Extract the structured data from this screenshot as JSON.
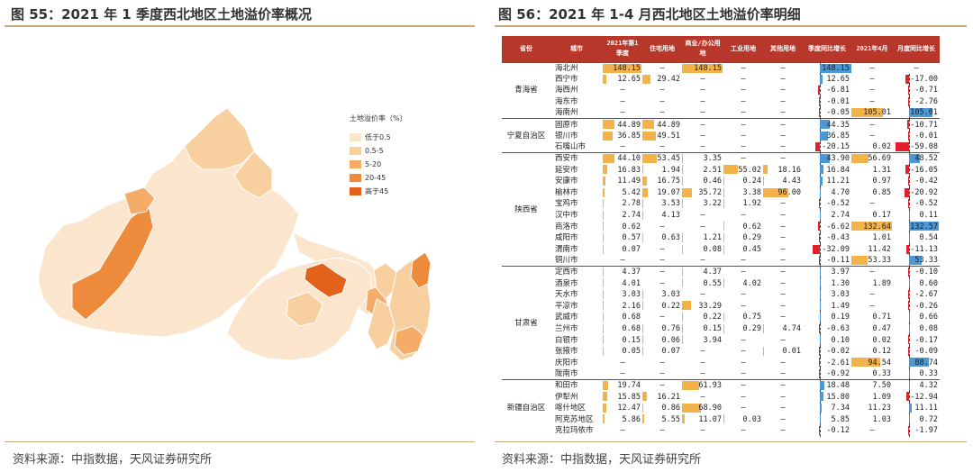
{
  "left": {
    "title": "图 55：2021 年 1 季度西北地区土地溢价率概况",
    "source": "资料来源：中指数据，天风证券研究所"
  },
  "right": {
    "title": "图 56：2021 年 1-4 月西北地区土地溢价率明细",
    "source": "资料来源：中指数据，天风证券研究所"
  },
  "legend": {
    "title": "土地溢价率（%）",
    "items": [
      {
        "label": "低于0.5",
        "color": "#fbe5cc"
      },
      {
        "label": "0.5-5",
        "color": "#f8cf9e"
      },
      {
        "label": "5-20",
        "color": "#f4ac68"
      },
      {
        "label": "20-45",
        "color": "#ee8a3c"
      },
      {
        "label": "高于45",
        "color": "#e2611b"
      }
    ]
  },
  "colors": {
    "header": "#b8372b",
    "bar_orange": "#f4b24a",
    "bar_blue": "#4b98d6",
    "bar_red": "#e0202b"
  },
  "table": {
    "headers": [
      "省份",
      "城市",
      "2021年第1季度",
      "住宅用地",
      "商业/办公用地",
      "工业用地",
      "其他用地",
      "季度同比增长",
      "2021年4月",
      "月度同比增长"
    ],
    "groups": [
      {
        "province": "青海省",
        "rows": [
          [
            "海北州",
            "148.15",
            "–",
            "148.15",
            "–",
            "–",
            "148.15",
            "–",
            "–"
          ],
          [
            "西宁市",
            "12.65",
            "29.42",
            "–",
            "–",
            "–",
            "12.65",
            "–",
            "-17.00"
          ],
          [
            "海西州",
            "–",
            "–",
            "–",
            "–",
            "–",
            "-6.81",
            "–",
            "-0.71"
          ],
          [
            "海东市",
            "–",
            "–",
            "–",
            "–",
            "–",
            "-0.01",
            "–",
            "-2.76"
          ],
          [
            "海南州",
            "–",
            "–",
            "–",
            "–",
            "–",
            "-0.05",
            "105.01",
            "105.01"
          ]
        ]
      },
      {
        "province": "宁夏自治区",
        "rows": [
          [
            "固原市",
            "44.89",
            "44.89",
            "–",
            "–",
            "–",
            "44.35",
            "–",
            "-10.71"
          ],
          [
            "银川市",
            "36.85",
            "49.51",
            "–",
            "–",
            "–",
            "36.85",
            "–",
            "-0.01"
          ],
          [
            "石嘴山市",
            "–",
            "–",
            "–",
            "–",
            "–",
            "-20.15",
            "0.02",
            "-59.08"
          ]
        ]
      },
      {
        "province": "陕西省",
        "rows": [
          [
            "西安市",
            "44.10",
            "53.45",
            "3.35",
            "–",
            "–",
            "43.90",
            "56.69",
            "48.52"
          ],
          [
            "延安市",
            "16.83",
            "1.94",
            "2.51",
            "55.02",
            "18.16",
            "16.84",
            "1.31",
            "-16.05"
          ],
          [
            "安康市",
            "11.49",
            "16.75",
            "0.46",
            "0.24",
            "4.43",
            "11.21",
            "0.97",
            "-0.42"
          ],
          [
            "榆林市",
            "5.42",
            "19.07",
            "35.72",
            "3.38",
            "96.00",
            "4.70",
            "0.85",
            "-20.92"
          ],
          [
            "宝鸡市",
            "2.78",
            "3.53",
            "3.22",
            "1.92",
            "–",
            "-0.52",
            "–",
            "-0.52"
          ],
          [
            "汉中市",
            "2.74",
            "4.13",
            "–",
            "–",
            "–",
            "2.74",
            "0.17",
            "0.11"
          ],
          [
            "商洛市",
            "0.62",
            "–",
            "–",
            "0.62",
            "–",
            "-6.62",
            "132.64",
            "132.57"
          ],
          [
            "咸阳市",
            "0.57",
            "0.63",
            "1.21",
            "0.29",
            "–",
            "-0.43",
            "1.01",
            "0.54"
          ],
          [
            "渭南市",
            "0.07",
            "–",
            "0.08",
            "0.45",
            "–",
            "-32.09",
            "11.42",
            "-11.13"
          ],
          [
            "铜川市",
            "–",
            "–",
            "–",
            "–",
            "–",
            "-0.11",
            "53.33",
            "53.33"
          ]
        ]
      },
      {
        "province": "甘肃省",
        "rows": [
          [
            "定西市",
            "4.37",
            "–",
            "4.37",
            "–",
            "–",
            "3.97",
            "–",
            "-0.10"
          ],
          [
            "酒泉市",
            "4.01",
            "–",
            "0.55",
            "4.02",
            "–",
            "1.30",
            "1.89",
            "0.60"
          ],
          [
            "天水市",
            "3.03",
            "3.03",
            "–",
            "–",
            "–",
            "3.03",
            "–",
            "-2.67"
          ],
          [
            "平凉市",
            "2.16",
            "0.22",
            "33.29",
            "–",
            "–",
            "1.49",
            "–",
            "-0.26"
          ],
          [
            "武威市",
            "0.68",
            "–",
            "0.22",
            "0.75",
            "–",
            "0.19",
            "0.71",
            "0.66"
          ],
          [
            "兰州市",
            "0.68",
            "0.76",
            "0.15",
            "0.29",
            "4.74",
            "-0.63",
            "0.47",
            "0.08"
          ],
          [
            "白银市",
            "0.15",
            "0.06",
            "3.94",
            "–",
            "–",
            "0.10",
            "0.02",
            "-0.17"
          ],
          [
            "张掖市",
            "0.05",
            "0.07",
            "–",
            "–",
            "0.01",
            "-0.02",
            "0.12",
            "-0.09"
          ],
          [
            "庆阳市",
            "–",
            "–",
            "–",
            "–",
            "–",
            "-2.61",
            "94.54",
            "88.74"
          ],
          [
            "陇南市",
            "–",
            "–",
            "–",
            "–",
            "–",
            "-0.92",
            "0.33",
            "0.33"
          ]
        ]
      },
      {
        "province": "新疆自治区",
        "rows": [
          [
            "和田市",
            "19.74",
            "–",
            "61.93",
            "–",
            "–",
            "18.48",
            "7.50",
            "4.32"
          ],
          [
            "伊犁州",
            "15.85",
            "16.21",
            "–",
            "–",
            "–",
            "15.80",
            "1.09",
            "-12.94"
          ],
          [
            "喀什地区",
            "12.47",
            "0.86",
            "68.90",
            "–",
            "–",
            "7.34",
            "11.23",
            "11.11"
          ],
          [
            "阿克苏地区",
            "5.86",
            "5.55",
            "11.07",
            "0.03",
            "–",
            "5.85",
            "1.03",
            "0.72"
          ],
          [
            "克拉玛依市",
            "–",
            "–",
            "–",
            "–",
            "–",
            "-0.12",
            "–",
            "-1.97"
          ]
        ]
      }
    ]
  }
}
